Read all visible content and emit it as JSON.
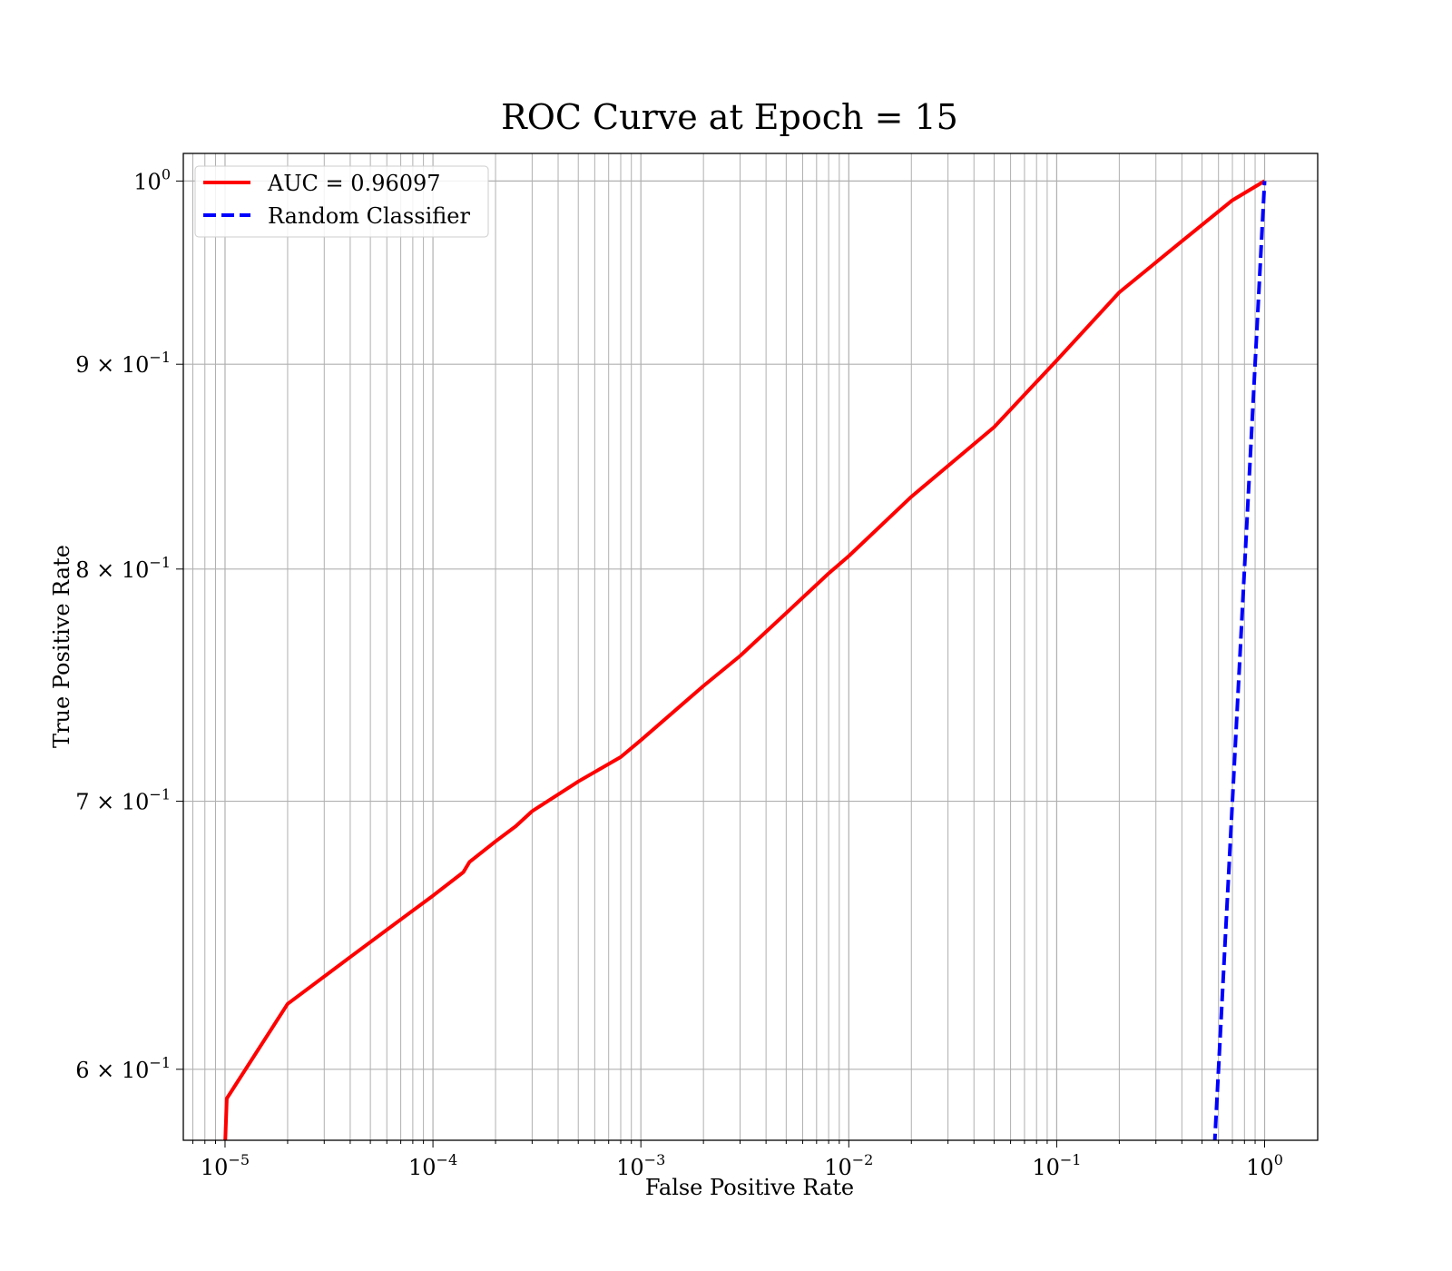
{
  "chart_data": {
    "type": "line",
    "title": "ROC Curve at Epoch = 15",
    "xlabel": "False Positive Rate",
    "ylabel": "True Positive Rate",
    "xscale": "log",
    "yscale": "log",
    "xlim": [
      6.3e-06,
      1.8
    ],
    "ylim": [
      0.576,
      1.016
    ],
    "grid": "both major and minor",
    "legend_position": "upper-left",
    "x_ticks": [
      {
        "value": 1e-05,
        "base": "10",
        "exp": "−5"
      },
      {
        "value": 0.0001,
        "base": "10",
        "exp": "−4"
      },
      {
        "value": 0.001,
        "base": "10",
        "exp": "−3"
      },
      {
        "value": 0.01,
        "base": "10",
        "exp": "−2"
      },
      {
        "value": 0.1,
        "base": "10",
        "exp": "−1"
      },
      {
        "value": 1,
        "base": "10",
        "exp": "0"
      }
    ],
    "y_ticks": [
      {
        "value": 1.0,
        "base": "10",
        "exp": "0"
      },
      {
        "value": 0.9,
        "base": "9 × 10",
        "exp": "−1"
      },
      {
        "value": 0.8,
        "base": "8 × 10",
        "exp": "−1"
      },
      {
        "value": 0.7,
        "base": "7 × 10",
        "exp": "−1"
      },
      {
        "value": 0.6,
        "base": "6 × 10",
        "exp": "−1"
      }
    ],
    "series": [
      {
        "name": "AUC = 0.96097",
        "color": "#ff0000",
        "style": "solid",
        "x": [
          1e-05,
          1.02e-05,
          2e-05,
          4e-05,
          7e-05,
          0.0001,
          0.00014,
          0.00015,
          0.0002,
          0.00025,
          0.0003,
          0.0005,
          0.0008,
          0.001,
          0.002,
          0.003,
          0.005,
          0.008,
          0.01,
          0.02,
          0.05,
          0.1,
          0.2,
          0.4,
          0.7,
          1.0
        ],
        "y": [
          0.574,
          0.59,
          0.623,
          0.64,
          0.654,
          0.663,
          0.672,
          0.676,
          0.684,
          0.69,
          0.696,
          0.708,
          0.718,
          0.725,
          0.748,
          0.761,
          0.78,
          0.798,
          0.806,
          0.834,
          0.868,
          0.902,
          0.938,
          0.966,
          0.989,
          1.0
        ]
      },
      {
        "name": "Random Classifier",
        "color": "#0000ff",
        "style": "dashed",
        "x": [
          0.574,
          1.0
        ],
        "y": [
          0.574,
          1.0
        ]
      }
    ]
  }
}
